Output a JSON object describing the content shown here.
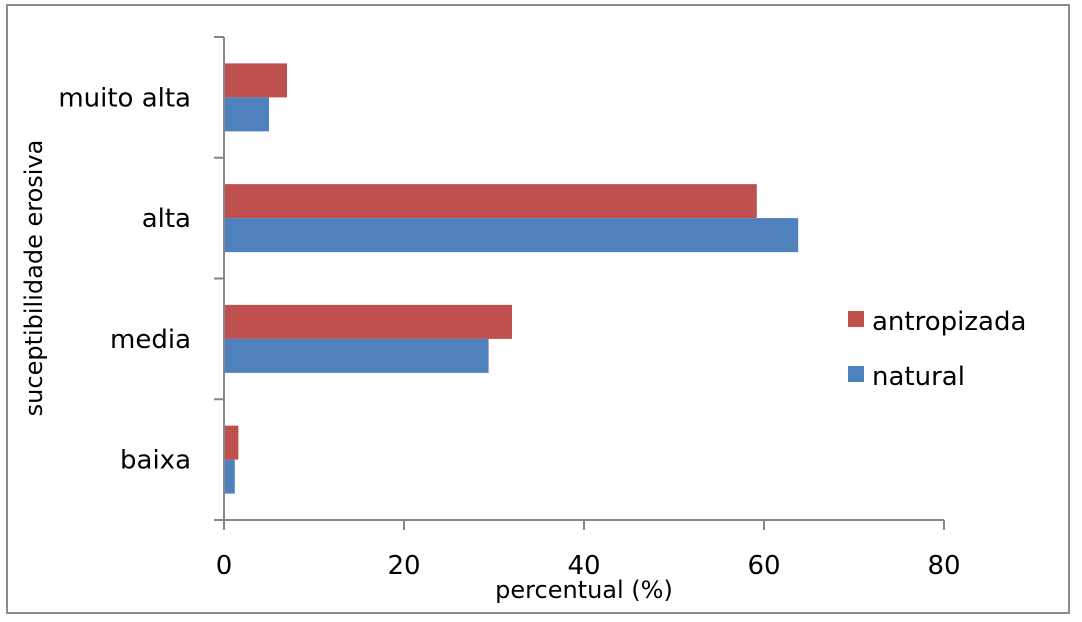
{
  "chart_data": {
    "type": "bar",
    "orientation": "horizontal",
    "categories": [
      "baixa",
      "media",
      "alta",
      "muito alta"
    ],
    "series": [
      {
        "name": "antropizada",
        "color": "#c0504d",
        "values": [
          1.6,
          32.0,
          59.2,
          7.0
        ]
      },
      {
        "name": "natural",
        "color": "#4f81bd",
        "values": [
          1.2,
          29.4,
          63.8,
          5.0
        ]
      }
    ],
    "xlabel": "percentual (%)",
    "ylabel": "suceptibilidade erosiva",
    "xlim": [
      0,
      80
    ],
    "xticks": [
      "0",
      "20",
      "40",
      "60",
      "80"
    ],
    "grid": false,
    "legend_position": "right"
  }
}
